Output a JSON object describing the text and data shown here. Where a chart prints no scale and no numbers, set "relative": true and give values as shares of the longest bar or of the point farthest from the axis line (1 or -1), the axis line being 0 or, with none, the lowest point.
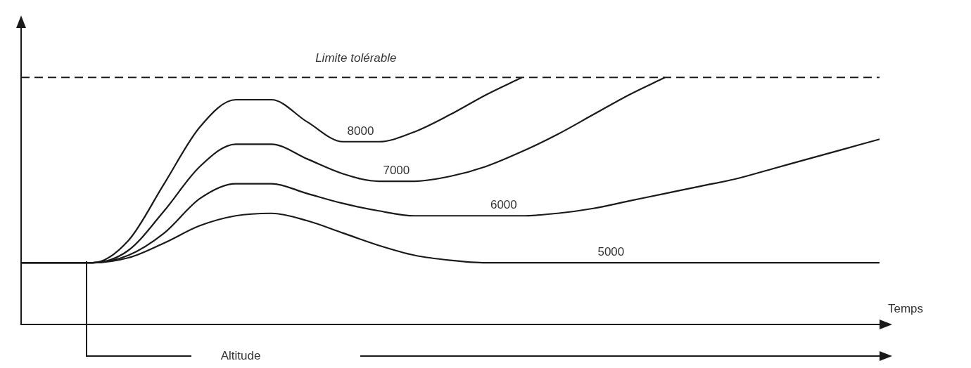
{
  "chart_data": {
    "type": "line",
    "relative": true,
    "xlabel": "Temps",
    "legend": false,
    "grid": false,
    "marker": "none",
    "line_style": "solid",
    "categories": [
      null,
      null,
      null,
      null,
      null,
      null,
      null,
      null,
      null,
      null,
      null,
      null,
      null,
      null,
      null,
      null,
      null,
      null,
      null,
      null,
      null,
      null,
      null,
      null,
      null
    ],
    "series": [
      {
        "name": "8000",
        "color": "#1a1a1a",
        "values": [
          0.25,
          0.25,
          0.25,
          0.34,
          0.57,
          0.8,
          0.91,
          0.91,
          0.82,
          0.74,
          0.74,
          0.78,
          0.85,
          0.93,
          1.0,
          null,
          null,
          null,
          null,
          null,
          null,
          null,
          null,
          null,
          null
        ]
      },
      {
        "name": "7000",
        "color": "#1a1a1a",
        "values": [
          0.25,
          0.25,
          0.25,
          0.3,
          0.46,
          0.64,
          0.73,
          0.73,
          0.67,
          0.61,
          0.58,
          0.58,
          0.6,
          0.64,
          0.7,
          0.77,
          0.85,
          0.93,
          1.0,
          null,
          null,
          null,
          null,
          null,
          null
        ]
      },
      {
        "name": "6000",
        "color": "#1a1a1a",
        "values": [
          0.25,
          0.25,
          0.25,
          0.28,
          0.37,
          0.51,
          0.57,
          0.57,
          0.53,
          0.49,
          0.46,
          0.44,
          0.44,
          0.44,
          0.44,
          0.45,
          0.47,
          0.5,
          0.53,
          0.56,
          0.59,
          0.63,
          0.67,
          0.71,
          0.75
        ]
      },
      {
        "name": "5000",
        "color": "#1a1a1a",
        "values": [
          0.25,
          0.25,
          0.25,
          0.27,
          0.33,
          0.4,
          0.44,
          0.45,
          0.42,
          0.37,
          0.32,
          0.28,
          0.26,
          0.25,
          0.25,
          0.25,
          0.25,
          0.25,
          0.25,
          0.25,
          0.25,
          0.25,
          0.25,
          0.25,
          0.25
        ]
      }
    ],
    "ref_lines": [
      {
        "axis": "y",
        "value": 1.0,
        "label": "Limite tolérable",
        "line_style": "dashed",
        "color": "#1a1a1a"
      }
    ],
    "annotations": [
      "Altitude"
    ]
  }
}
